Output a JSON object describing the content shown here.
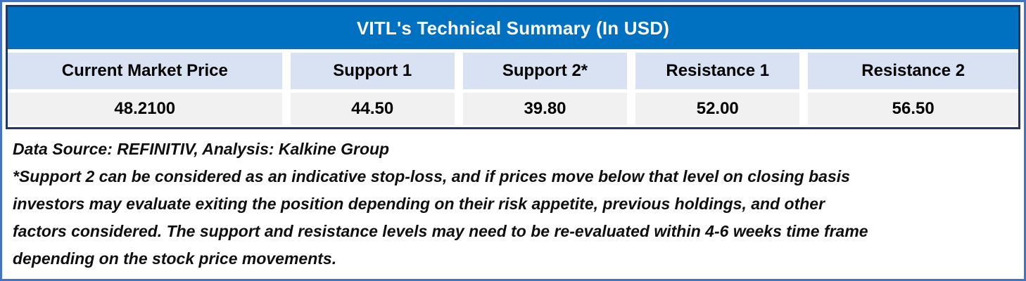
{
  "chart_data": {
    "type": "table",
    "title": "VITL's Technical Summary (In USD)",
    "columns": [
      {
        "header": "Current Market Price",
        "value": "48.2100"
      },
      {
        "header": "Support 1",
        "value": "44.50"
      },
      {
        "header": "Support 2*",
        "value": "39.80"
      },
      {
        "header": "Resistance 1",
        "value": "52.00"
      },
      {
        "header": "Resistance 2",
        "value": "56.50"
      }
    ]
  },
  "notes": {
    "source_line": "Data Source: REFINITIV, Analysis: Kalkine Group",
    "disclaimer_lines": [
      "*Support 2 can be considered as an indicative stop-loss, and if prices move below that level on closing basis",
      "investors may evaluate exiting the position depending on their risk appetite, previous holdings, and other",
      "factors considered. The support and resistance levels may need to be re-evaluated within 4-6 weeks time frame",
      "depending on the stock price movements."
    ]
  },
  "colors": {
    "outer_frame": "#4472C4",
    "table_border": "#1F3864",
    "title_background": "#0070C0",
    "title_text": "#FFFFFF",
    "header_cell_background": "#D9E2F3",
    "value_cell_background": "#F1F1F1",
    "body_text": "#000000"
  }
}
